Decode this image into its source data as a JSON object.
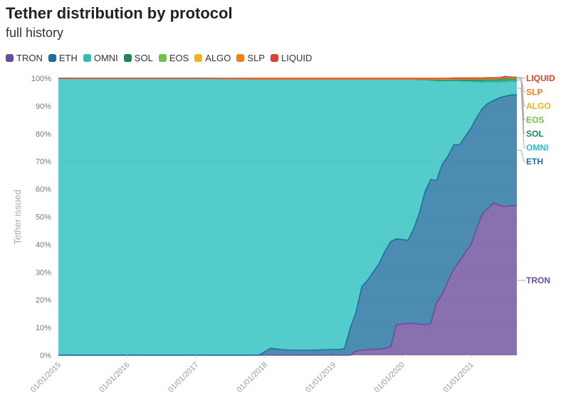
{
  "chart_data": {
    "type": "area",
    "stacked": true,
    "title": "Tether distribution by protocol",
    "subtitle": "full history",
    "ylabel": "Tether issued",
    "xlabel": "",
    "ylim": [
      0,
      100
    ],
    "y_ticks": [
      "0%",
      "10%",
      "20%",
      "30%",
      "40%",
      "50%",
      "60%",
      "70%",
      "80%",
      "90%",
      "100%"
    ],
    "x_ticks": [
      "01/01/2015",
      "01/01/2016",
      "01/01/2017",
      "01/01/2018",
      "01/01/2019",
      "01/01/2020",
      "01/01/2021"
    ],
    "legend_position": "top-left",
    "x": [
      "01/01/2015",
      "01/01/2016",
      "01/01/2017",
      "06/01/2017",
      "10/01/2017",
      "11/01/2017",
      "12/01/2017",
      "02/01/2018",
      "04/01/2018",
      "06/01/2018",
      "09/01/2018",
      "12/01/2018",
      "02/01/2019",
      "03/01/2019",
      "04/01/2019",
      "05/01/2019",
      "06/01/2019",
      "07/01/2019",
      "09/01/2019",
      "10/01/2019",
      "11/01/2019",
      "12/01/2019",
      "02/01/2020",
      "03/01/2020",
      "04/01/2020",
      "05/01/2020",
      "06/01/2020",
      "07/01/2020",
      "08/01/2020",
      "09/01/2020",
      "10/01/2020",
      "11/01/2020",
      "12/01/2020",
      "01/01/2021",
      "02/01/2021",
      "03/01/2021",
      "04/01/2021",
      "05/01/2021",
      "06/01/2021",
      "07/01/2021",
      "08/01/2021",
      "09/01/2021"
    ],
    "series": [
      {
        "name": "TRON",
        "color": "#6b4c9a",
        "values": [
          0,
          0,
          0,
          0,
          0,
          0,
          0,
          0,
          0,
          0,
          0,
          0,
          0,
          0,
          0,
          1.5,
          1.8,
          2,
          2.2,
          2.5,
          3,
          11,
          11.5,
          11.5,
          11.2,
          11,
          11.5,
          19,
          22,
          27,
          31,
          34,
          37,
          40,
          46,
          51,
          53,
          55,
          54,
          53.7,
          54,
          54
        ]
      },
      {
        "name": "ETH",
        "color": "#1f6f9f",
        "values": [
          0,
          0,
          0,
          0,
          0,
          0,
          0,
          2.5,
          2,
          1.8,
          1.8,
          2,
          2,
          2.5,
          10,
          14,
          23,
          25,
          31,
          35,
          38,
          31,
          30,
          34,
          40,
          48,
          52,
          44,
          47,
          45,
          45,
          42,
          42,
          42,
          40,
          38,
          38,
          37,
          39,
          39.8,
          40,
          40
        ]
      },
      {
        "name": "OMNI",
        "color": "#2abfbf",
        "values": [
          100,
          100,
          100,
          99.9,
          99.8,
          99.7,
          99.7,
          97.2,
          97.7,
          97.9,
          97.9,
          97.7,
          97.7,
          97.2,
          89.7,
          84.2,
          74.9,
          72.7,
          66.5,
          62.2,
          58.7,
          57.7,
          58.2,
          54.1,
          48.3,
          40.5,
          35.9,
          36.2,
          30.2,
          27.2,
          23.1,
          23,
          19.8,
          16.8,
          12.6,
          9.6,
          7.7,
          6.7,
          5.6,
          5.3,
          5,
          4.8
        ]
      },
      {
        "name": "SOL",
        "color": "#1a8a4f",
        "values": [
          0,
          0,
          0,
          0,
          0,
          0,
          0,
          0,
          0,
          0,
          0,
          0,
          0,
          0,
          0,
          0,
          0,
          0,
          0,
          0,
          0,
          0,
          0,
          0,
          0,
          0,
          0,
          0,
          0,
          0,
          0.3,
          0.4,
          0.6,
          0.6,
          0.8,
          0.8,
          0.9,
          0.9,
          1,
          1.3,
          0.9,
          1.1
        ]
      },
      {
        "name": "EOS",
        "color": "#6fc04b",
        "values": [
          0,
          0,
          0,
          0,
          0,
          0,
          0,
          0,
          0,
          0,
          0,
          0,
          0,
          0,
          0,
          0,
          0,
          0,
          0,
          0,
          0,
          0,
          0,
          0,
          0.1,
          0.1,
          0.2,
          0.3,
          0.3,
          0.3,
          0.3,
          0.3,
          0.3,
          0.3,
          0.3,
          0.3,
          0.2,
          0.2,
          0.2,
          0.2,
          0.1,
          0.1
        ]
      },
      {
        "name": "ALGO",
        "color": "#f2b21c",
        "values": [
          0,
          0,
          0,
          0,
          0,
          0,
          0,
          0,
          0,
          0,
          0,
          0,
          0,
          0,
          0,
          0,
          0,
          0,
          0,
          0,
          0,
          0,
          0,
          0.1,
          0.1,
          0.1,
          0.1,
          0.2,
          0.2,
          0.2,
          0.1,
          0.1,
          0.1,
          0.1,
          0.1,
          0.1,
          0.1,
          0.1,
          0.1,
          0.1,
          0.1,
          0.1
        ]
      },
      {
        "name": "SLP",
        "color": "#ef7d1a",
        "values": [
          0,
          0,
          0,
          0,
          0,
          0,
          0,
          0,
          0,
          0,
          0,
          0,
          0,
          0,
          0,
          0,
          0,
          0,
          0,
          0,
          0,
          0,
          0,
          0,
          0,
          0,
          0,
          0,
          0,
          0,
          0,
          0,
          0,
          0,
          0,
          0,
          0,
          0,
          0,
          0,
          0,
          0
        ]
      },
      {
        "name": "LIQUID",
        "color": "#d9432e",
        "values": [
          0,
          0,
          0,
          0.1,
          0.2,
          0.3,
          0.3,
          0.3,
          0.3,
          0.3,
          0.3,
          0.3,
          0.3,
          0.3,
          0.3,
          0.3,
          0.3,
          0.3,
          0.3,
          0.3,
          0.3,
          0.3,
          0.3,
          0.3,
          0.3,
          0.3,
          0.3,
          0.3,
          0.3,
          0.3,
          0.3,
          0.3,
          0.3,
          0.3,
          0.3,
          0.3,
          0.3,
          0.3,
          0.3,
          0.3,
          0.3,
          0.3
        ]
      }
    ],
    "end_labels": [
      {
        "name": "LIQUID",
        "color": "#d9432e"
      },
      {
        "name": "SLP",
        "color": "#ef7d1a"
      },
      {
        "name": "ALGO",
        "color": "#f2b21c"
      },
      {
        "name": "EOS",
        "color": "#6fc04b"
      },
      {
        "name": "SOL",
        "color": "#1a8a4f"
      },
      {
        "name": "OMNI",
        "color": "#2abfbf"
      },
      {
        "name": "ETH",
        "color": "#1f6f9f"
      },
      {
        "name": "TRON",
        "color": "#6b4c9a"
      }
    ]
  }
}
